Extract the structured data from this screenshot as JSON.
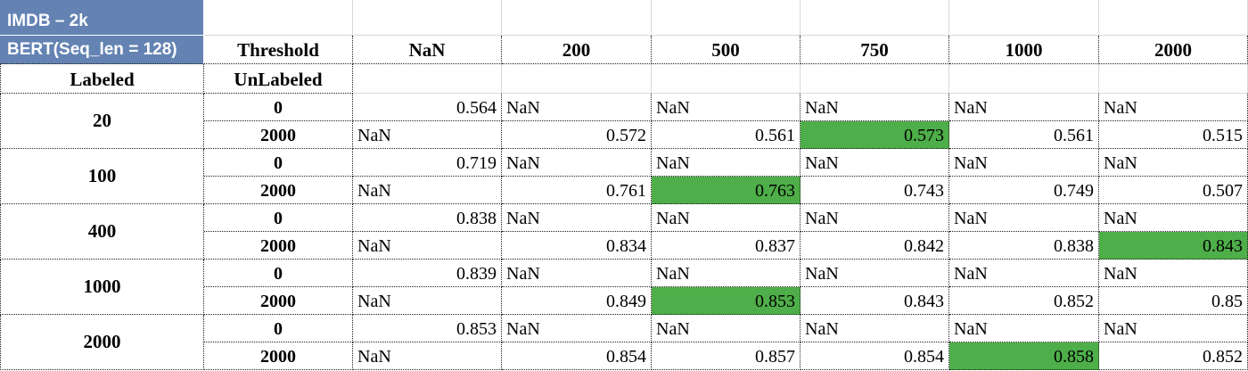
{
  "title_cell": {
    "line1": "IMDB – 2k",
    "line2": "BERT(Seq_len = 128)"
  },
  "header": {
    "threshold_label": "Threshold",
    "thresholds": [
      "NaN",
      "200",
      "500",
      "750",
      "1000",
      "2000"
    ],
    "labeled_label": "Labeled",
    "unlabeled_label": "UnLabeled"
  },
  "highlight_color": "#4eae49",
  "header_fill_color": "#6483b3",
  "groups": [
    {
      "labeled": "20",
      "rows": [
        {
          "unlabeled": "0",
          "values": [
            "0.564",
            "NaN",
            "NaN",
            "NaN",
            "NaN",
            "NaN"
          ]
        },
        {
          "unlabeled": "2000",
          "values": [
            "NaN",
            "0.572",
            "0.561",
            "0.573",
            "0.561",
            "0.515"
          ],
          "highlight_col": 3
        }
      ]
    },
    {
      "labeled": "100",
      "rows": [
        {
          "unlabeled": "0",
          "values": [
            "0.719",
            "NaN",
            "NaN",
            "NaN",
            "NaN",
            "NaN"
          ]
        },
        {
          "unlabeled": "2000",
          "values": [
            "NaN",
            "0.761",
            "0.763",
            "0.743",
            "0.749",
            "0.507"
          ],
          "highlight_col": 2
        }
      ]
    },
    {
      "labeled": "400",
      "rows": [
        {
          "unlabeled": "0",
          "values": [
            "0.838",
            "NaN",
            "NaN",
            "NaN",
            "NaN",
            "NaN"
          ]
        },
        {
          "unlabeled": "2000",
          "values": [
            "NaN",
            "0.834",
            "0.837",
            "0.842",
            "0.838",
            "0.843"
          ],
          "highlight_col": 5
        }
      ]
    },
    {
      "labeled": "1000",
      "rows": [
        {
          "unlabeled": "0",
          "values": [
            "0.839",
            "NaN",
            "NaN",
            "NaN",
            "NaN",
            "NaN"
          ]
        },
        {
          "unlabeled": "2000",
          "values": [
            "NaN",
            "0.849",
            "0.853",
            "0.843",
            "0.852",
            "0.85"
          ],
          "highlight_col": 2
        }
      ]
    },
    {
      "labeled": "2000",
      "rows": [
        {
          "unlabeled": "0",
          "values": [
            "0.853",
            "NaN",
            "NaN",
            "NaN",
            "NaN",
            "NaN"
          ]
        },
        {
          "unlabeled": "2000",
          "values": [
            "NaN",
            "0.854",
            "0.857",
            "0.854",
            "0.858",
            "0.852"
          ],
          "highlight_col": 4
        }
      ]
    }
  ]
}
